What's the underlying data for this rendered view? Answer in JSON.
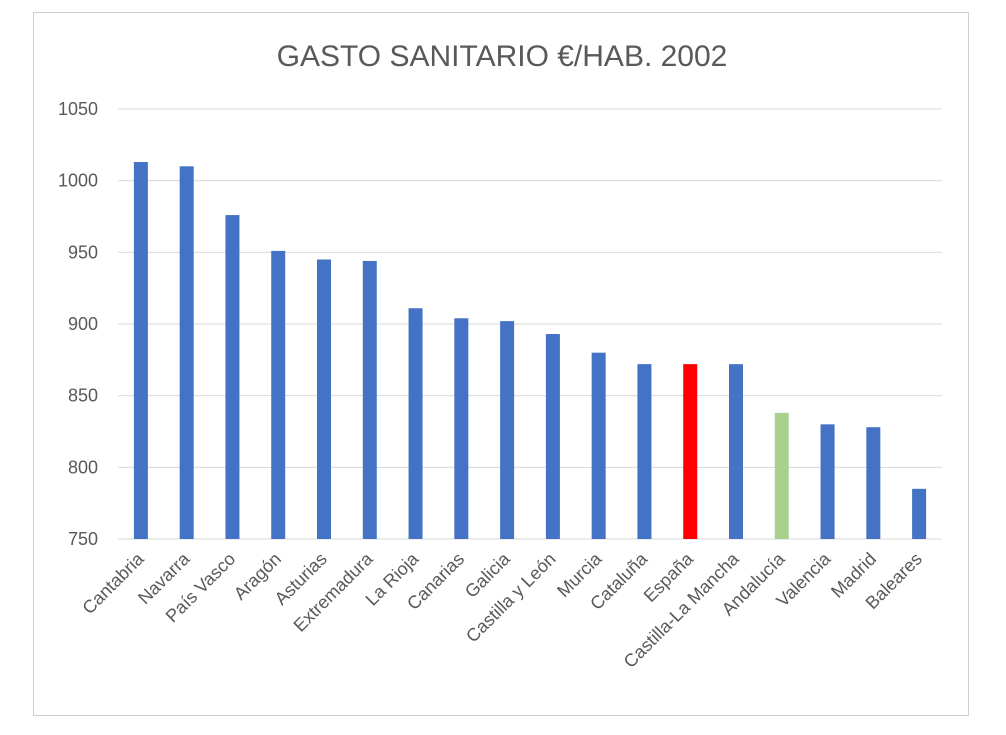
{
  "chart_data": {
    "type": "bar",
    "title": "GASTO SANITARIO €/HAB. 2002",
    "xlabel": "",
    "ylabel": "",
    "ylim": [
      750,
      1050
    ],
    "yticks": [
      750,
      800,
      850,
      900,
      950,
      1000,
      1050
    ],
    "grid": true,
    "categories": [
      "Cantabria",
      "Navarra",
      "País Vasco",
      "Aragón",
      "Asturias",
      "Extremadura",
      "La Rioja",
      "Canarias",
      "Galicia",
      "Castilla y León",
      "Murcia",
      "Cataluña",
      "España",
      "Castilla-La Mancha",
      "Andalucía",
      "Valencia",
      "Madrid",
      "Baleares"
    ],
    "values": [
      1013,
      1010,
      976,
      951,
      945,
      944,
      911,
      904,
      902,
      893,
      880,
      872,
      872,
      872,
      838,
      830,
      828,
      785
    ],
    "colors": [
      "#4472c4",
      "#4472c4",
      "#4472c4",
      "#4472c4",
      "#4472c4",
      "#4472c4",
      "#4472c4",
      "#4472c4",
      "#4472c4",
      "#4472c4",
      "#4472c4",
      "#4472c4",
      "#ff0000",
      "#4472c4",
      "#a9d18e",
      "#4472c4",
      "#4472c4",
      "#4472c4"
    ]
  }
}
